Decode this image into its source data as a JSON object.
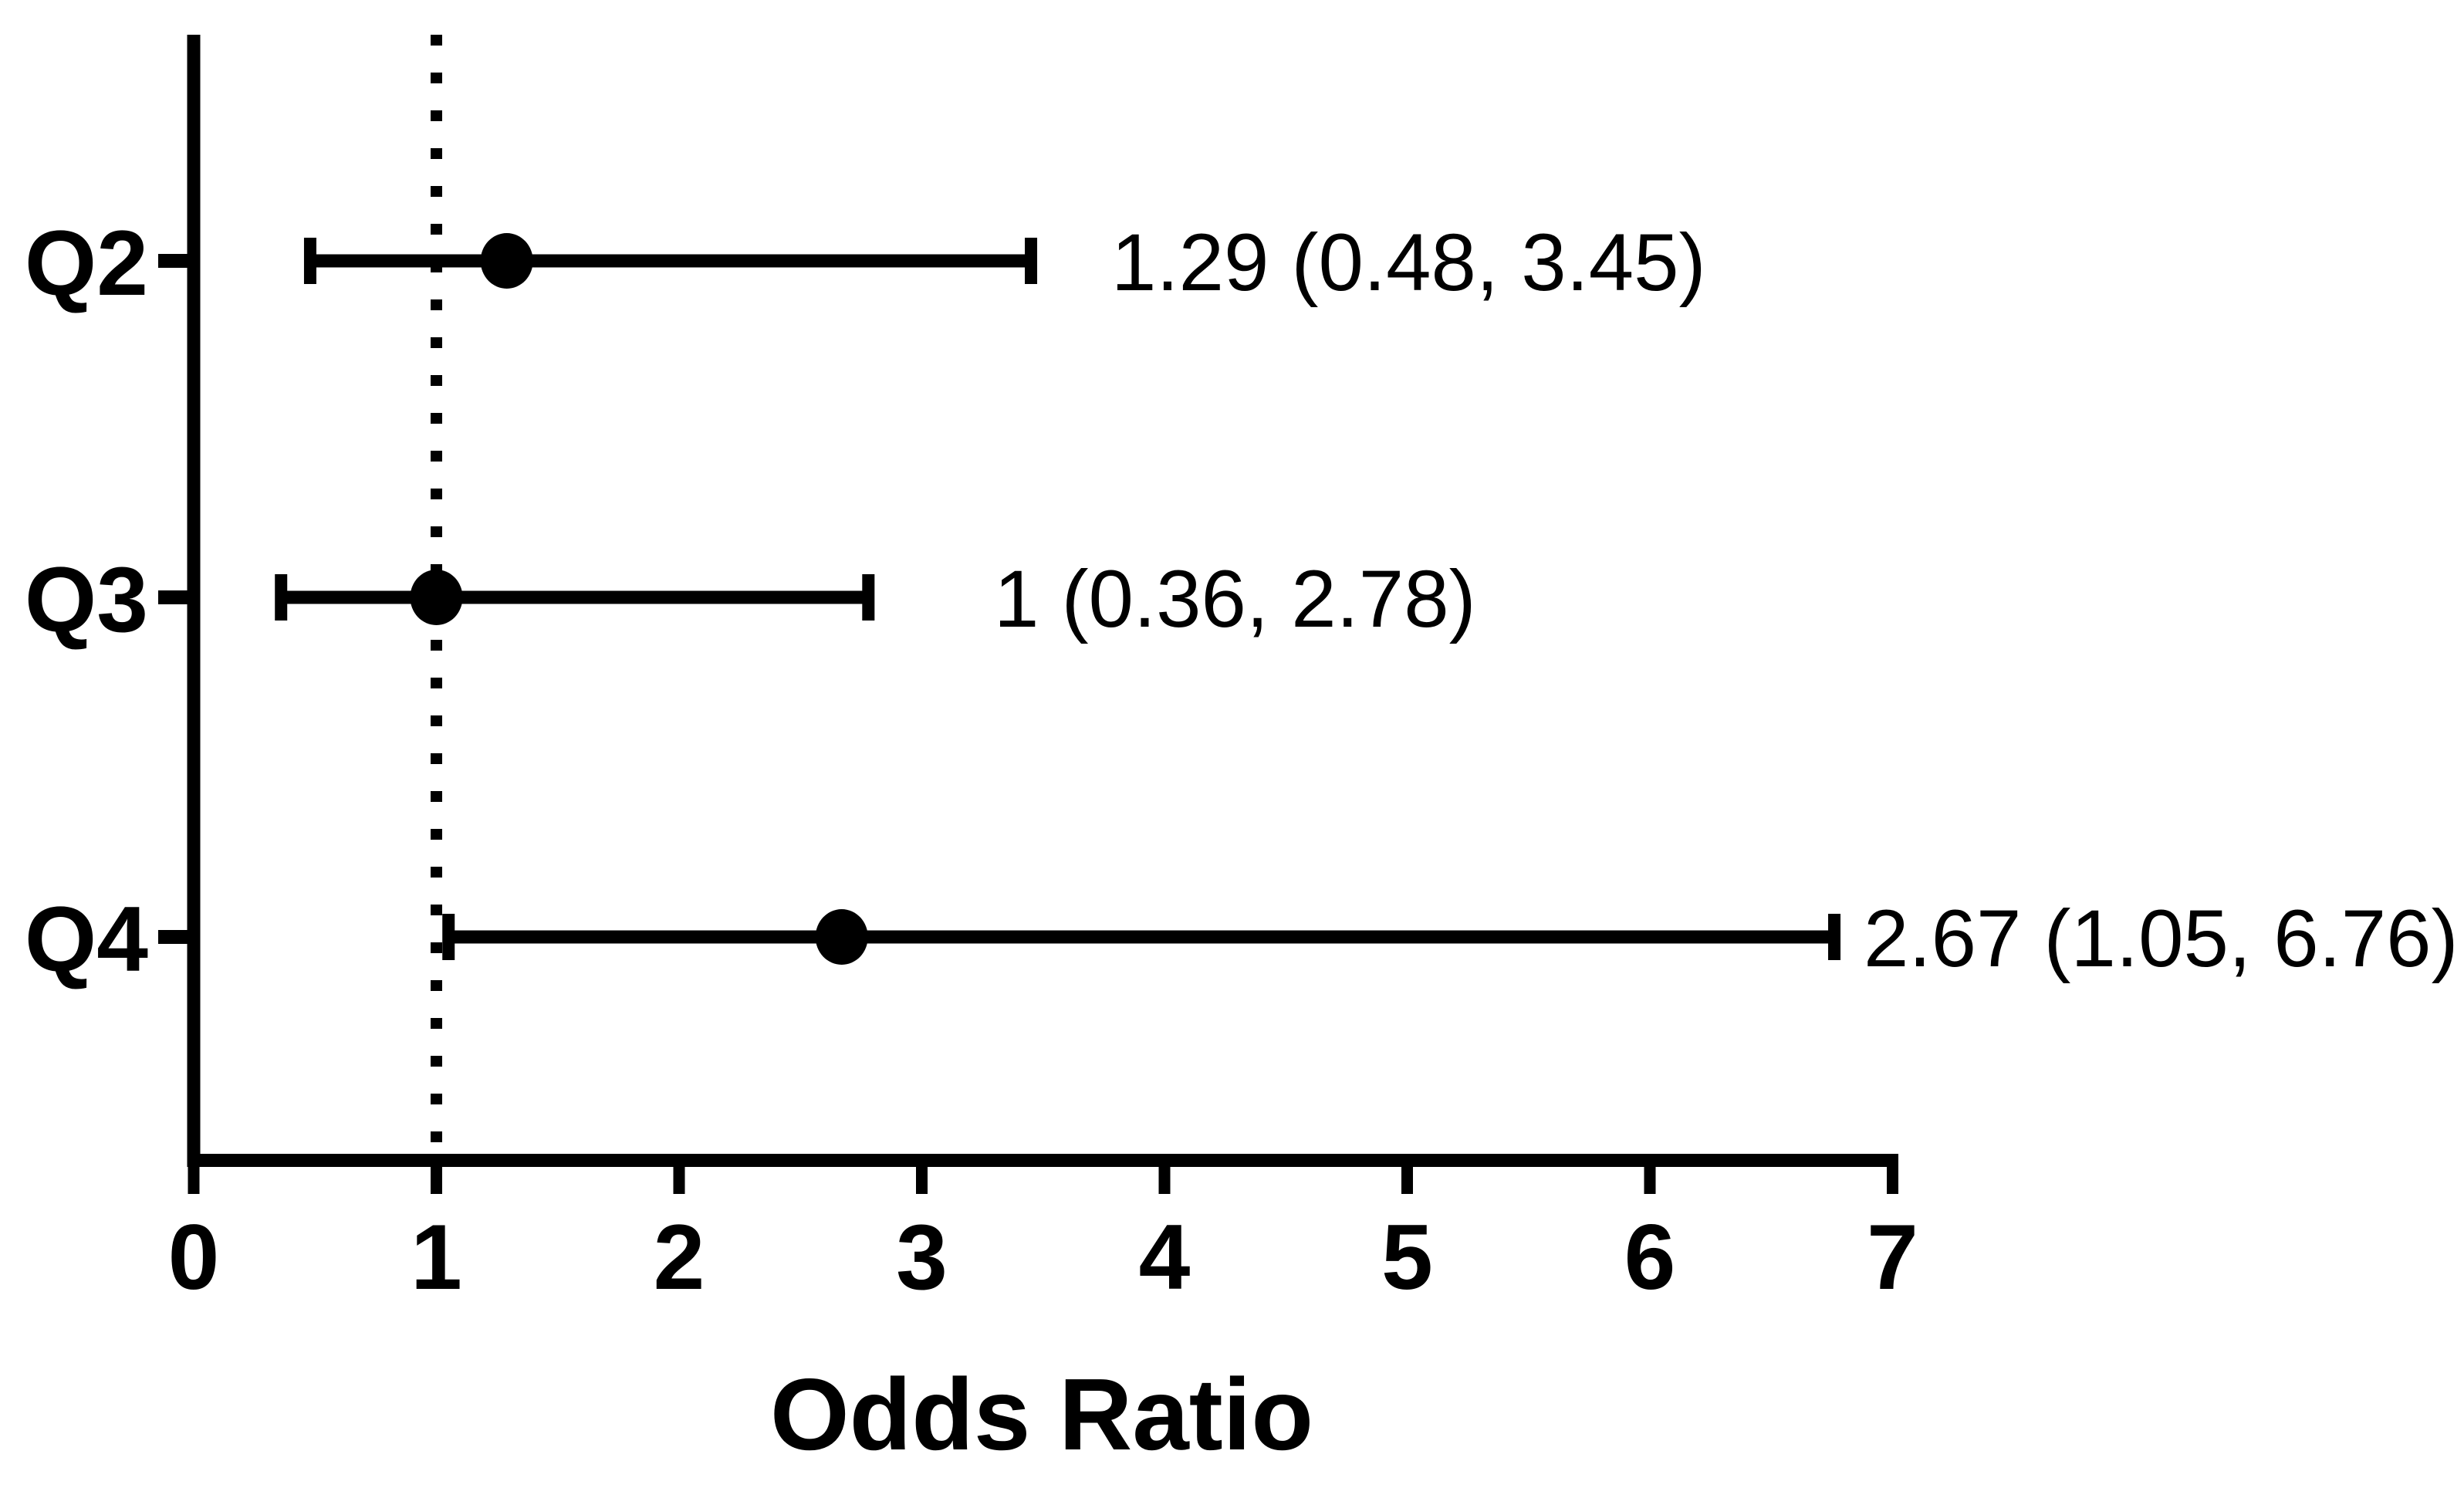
{
  "figure": {
    "background_color": "#ffffff",
    "ink_color": "#000000"
  },
  "chart_data": {
    "type": "forest",
    "title": "",
    "xlabel": "Odds Ratio",
    "ylabel": "",
    "xlim": [
      0,
      7
    ],
    "x_ticks": [
      "0",
      "1",
      "2",
      "3",
      "4",
      "5",
      "6",
      "7"
    ],
    "grid": "off",
    "legend": "none",
    "reference_line": {
      "x": 1,
      "style": "dotted"
    },
    "categories": [
      "Q2",
      "Q3",
      "Q4"
    ],
    "rows": [
      {
        "label": "Q2",
        "estimate": 1.29,
        "ci_low": 0.48,
        "ci_high": 3.45,
        "annotation": "1.29 (0.48, 3.45)"
      },
      {
        "label": "Q3",
        "estimate": 1,
        "ci_low": 0.36,
        "ci_high": 2.78,
        "annotation": "1 (0.36, 2.78)"
      },
      {
        "label": "Q4",
        "estimate": 2.67,
        "ci_low": 1.05,
        "ci_high": 6.76,
        "annotation": "2.67 (1.05, 6.76)"
      }
    ]
  }
}
